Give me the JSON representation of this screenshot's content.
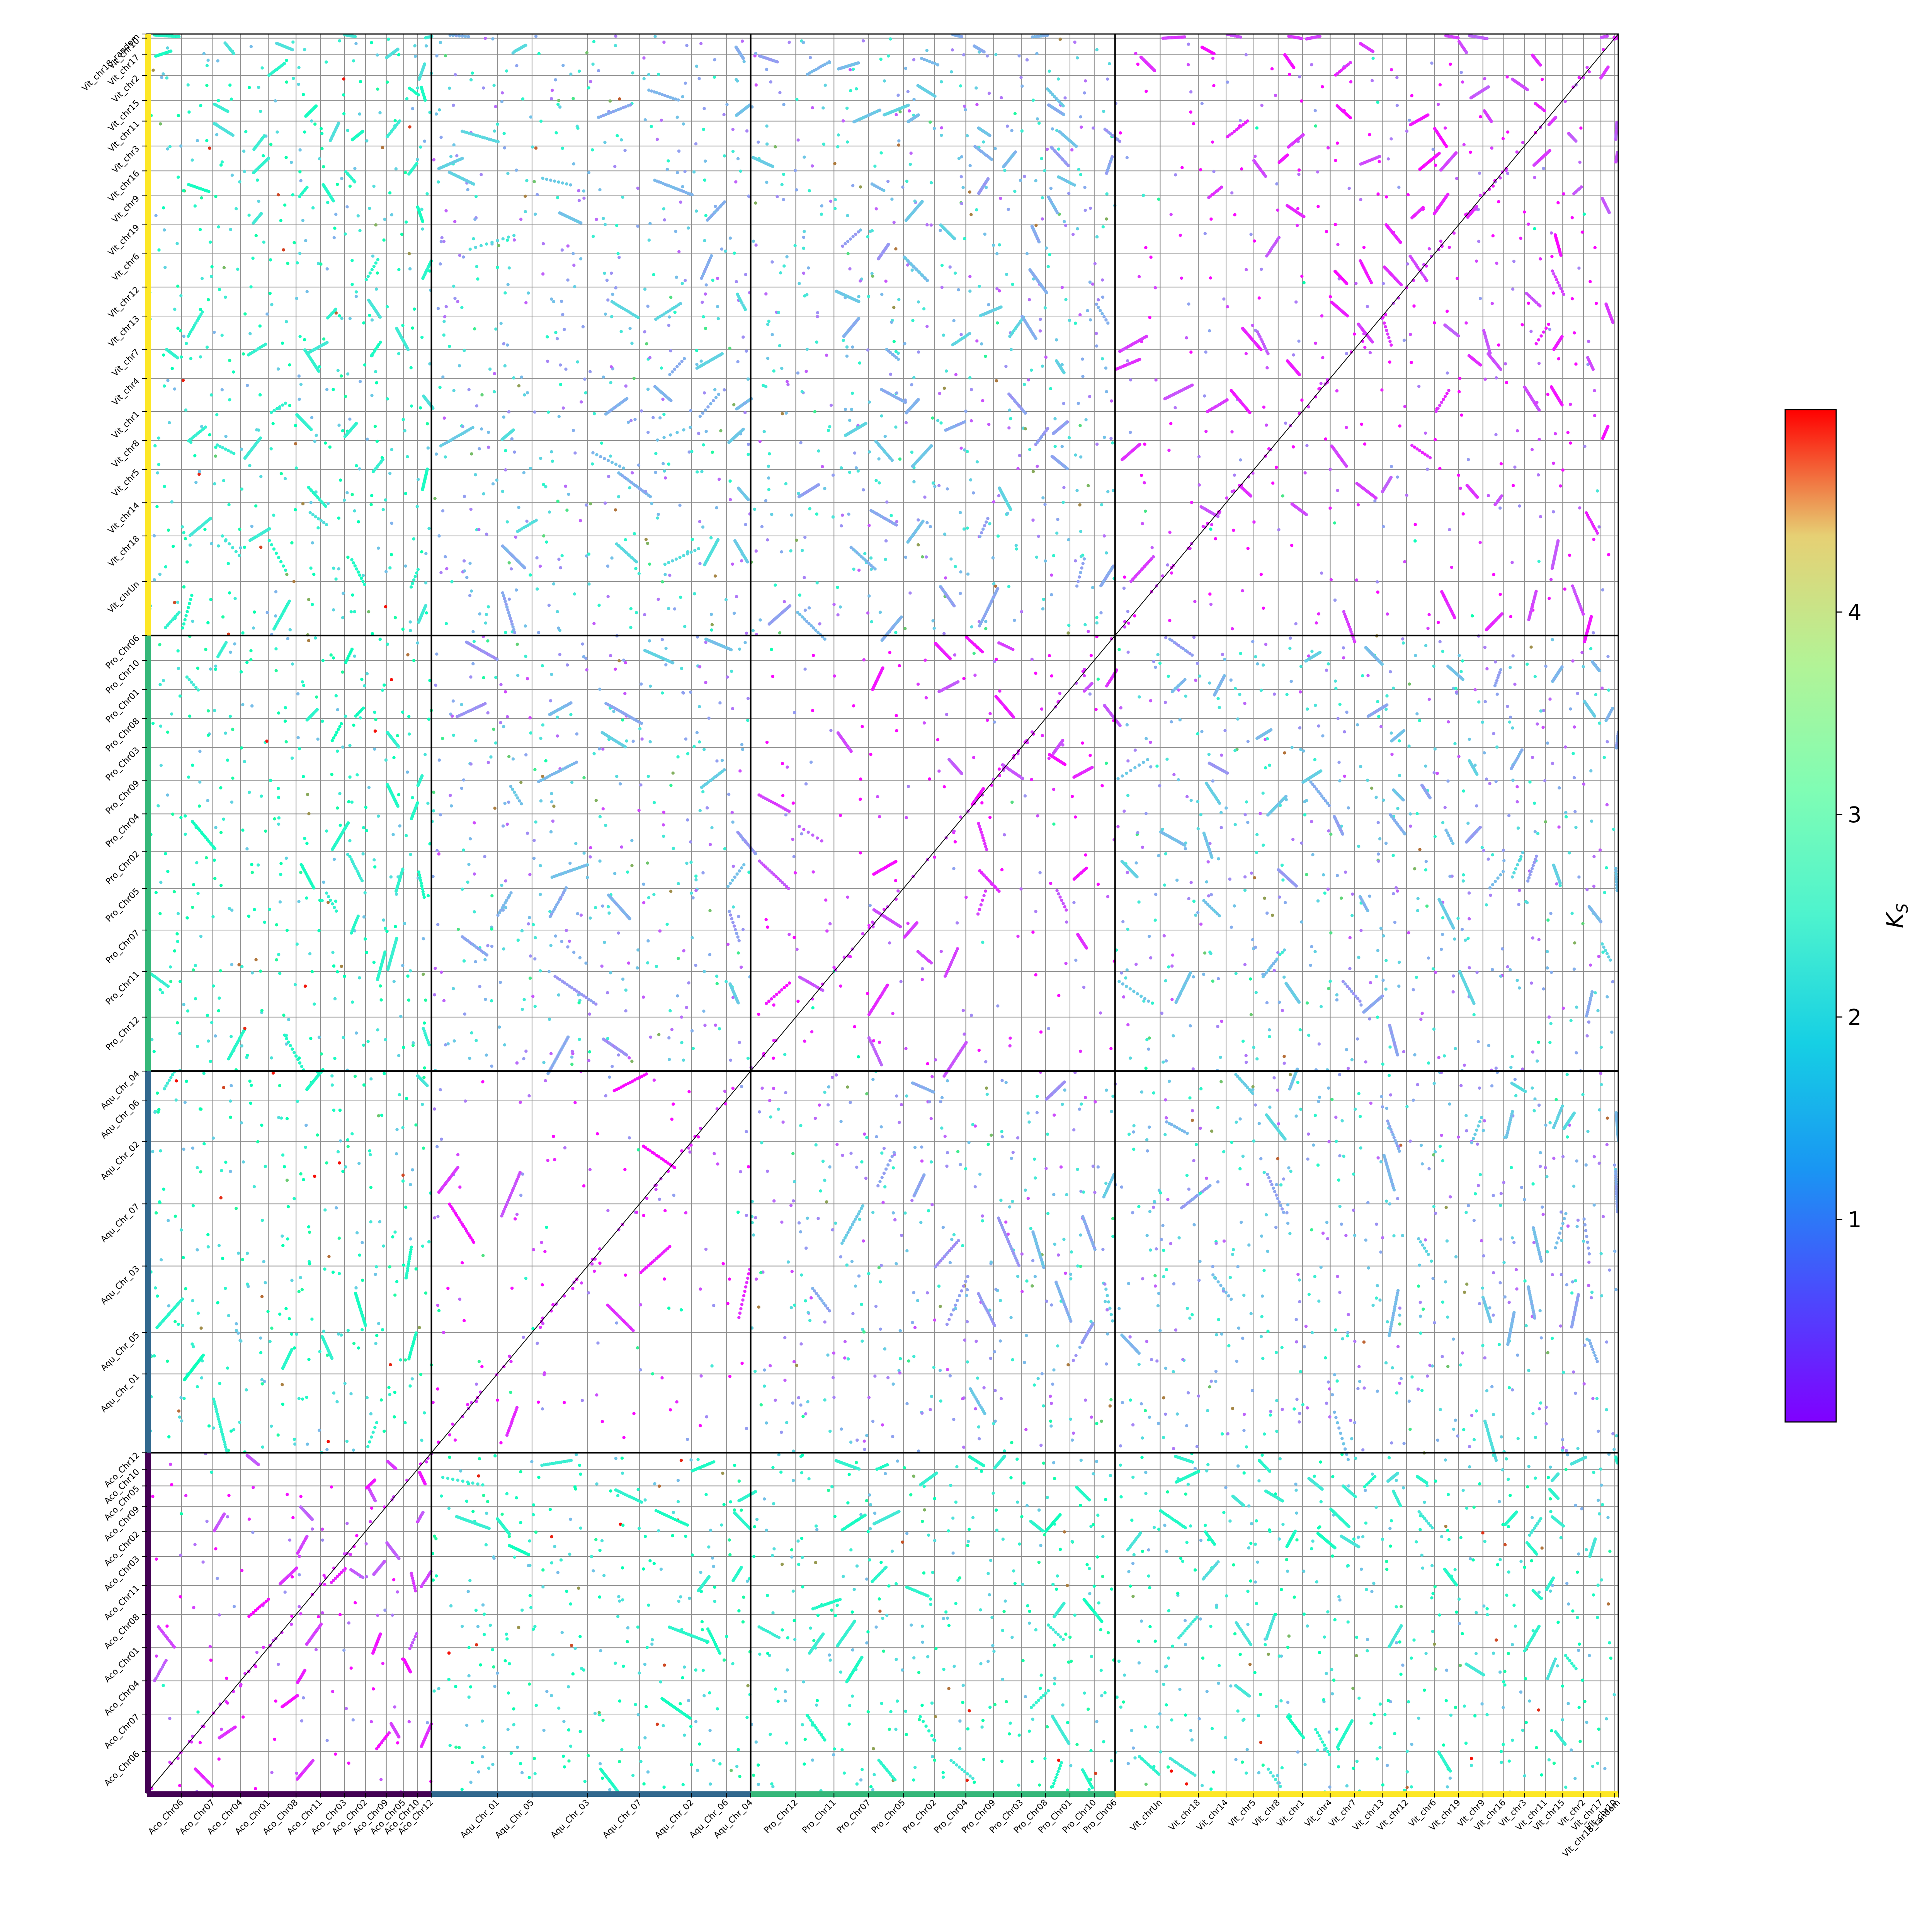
{
  "chart_data": {
    "type": "scatter",
    "title": "",
    "x_axis": {
      "groups": [
        {
          "name": "Aco",
          "color": "#440154",
          "chromosomes": [
            "Aco_Chr06",
            "Aco_Chr07",
            "Aco_Chr04",
            "Aco_Chr01",
            "Aco_Chr08",
            "Aco_Chr11",
            "Aco_Chr03",
            "Aco_Chr02",
            "Aco_Chr09",
            "Aco_Chr05",
            "Aco_Chr10",
            "Aco_Chr12"
          ],
          "sizes": [
            10,
            9,
            8,
            8,
            8,
            7,
            7,
            6,
            6,
            5,
            4,
            4
          ]
        },
        {
          "name": "Aqu",
          "color": "#31688e",
          "chromosomes": [
            "Aqu_Chr_01",
            "Aqu_Chr_05",
            "Aqu_Chr_03",
            "Aqu_Chr_07",
            "Aqu_Chr_02",
            "Aqu_Chr_06",
            "Aqu_Chr_04"
          ],
          "sizes": [
            19,
            10,
            16,
            15,
            15,
            10,
            7
          ]
        },
        {
          "name": "Pro",
          "color": "#35b779",
          "chromosomes": [
            "Pro_Chr12",
            "Pro_Chr11",
            "Pro_Chr07",
            "Pro_Chr05",
            "Pro_Chr02",
            "Pro_Chr04",
            "Pro_Chr09",
            "Pro_Chr03",
            "Pro_Chr08",
            "Pro_Chr01",
            "Pro_Chr10",
            "Pro_Chr06"
          ],
          "sizes": [
            13,
            11,
            10,
            10,
            9,
            9,
            8,
            8,
            7,
            7,
            7,
            6
          ]
        },
        {
          "name": "Vit",
          "color": "#fde725",
          "chromosomes": [
            "Vit_chrUn",
            "Vit_chr18",
            "Vit_chr14",
            "Vit_chr5",
            "Vit_chr8",
            "Vit_chr1",
            "Vit_chr4",
            "Vit_chr7",
            "Vit_chr13",
            "Vit_chr12",
            "Vit_chr6",
            "Vit_chr19",
            "Vit_chr9",
            "Vit_chr16",
            "Vit_chr3",
            "Vit_chr11",
            "Vit_chr15",
            "Vit_chr2",
            "Vit_chr17",
            "Vit_chr10",
            "Vit_chr18_random"
          ],
          "sizes": [
            13,
            11,
            8,
            8,
            7,
            7,
            8,
            7,
            8,
            7,
            8,
            7,
            7,
            6,
            6,
            6,
            5,
            6,
            5,
            4,
            1
          ]
        }
      ]
    },
    "y_axis": {
      "bottom_to_top": true,
      "groups": [
        {
          "name": "Aco",
          "color": "#440154",
          "chromosomes": [
            "Aco_Chr06",
            "Aco_Chr07",
            "Aco_Chr04",
            "Aco_Chr01",
            "Aco_Chr08",
            "Aco_Chr11",
            "Aco_Chr03",
            "Aco_Chr02",
            "Aco_Chr09",
            "Aco_Chr05",
            "Aco_Chr10",
            "Aco_Chr12"
          ],
          "sizes": [
            10,
            9,
            8,
            8,
            8,
            7,
            7,
            6,
            6,
            5,
            4,
            4
          ]
        },
        {
          "name": "Aqu",
          "color": "#31688e",
          "chromosomes": [
            "Aqu_Chr_01",
            "Aqu_Chr_05",
            "Aqu_Chr_03",
            "Aqu_Chr_07",
            "Aqu_Chr_02",
            "Aqu_Chr_06",
            "Aqu_Chr_04"
          ],
          "sizes": [
            19,
            10,
            16,
            15,
            15,
            10,
            7
          ]
        },
        {
          "name": "Pro",
          "color": "#35b779",
          "chromosomes": [
            "Pro_Chr12",
            "Pro_Chr11",
            "Pro_Chr07",
            "Pro_Chr05",
            "Pro_Chr02",
            "Pro_Chr04",
            "Pro_Chr09",
            "Pro_Chr03",
            "Pro_Chr08",
            "Pro_Chr01",
            "Pro_Chr10",
            "Pro_Chr06"
          ],
          "sizes": [
            13,
            11,
            10,
            10,
            9,
            9,
            8,
            8,
            7,
            7,
            7,
            6
          ]
        },
        {
          "name": "Vit",
          "color": "#fde725",
          "chromosomes": [
            "Vit_chrUn",
            "Vit_chr18",
            "Vit_chr14",
            "Vit_chr5",
            "Vit_chr8",
            "Vit_chr1",
            "Vit_chr4",
            "Vit_chr7",
            "Vit_chr13",
            "Vit_chr12",
            "Vit_chr6",
            "Vit_chr19",
            "Vit_chr9",
            "Vit_chr16",
            "Vit_chr3",
            "Vit_chr11",
            "Vit_chr15",
            "Vit_chr2",
            "Vit_chr17",
            "Vit_chr10",
            "Vit_chr18_random"
          ],
          "sizes": [
            13,
            11,
            8,
            8,
            7,
            7,
            8,
            7,
            8,
            7,
            8,
            7,
            7,
            6,
            6,
            6,
            5,
            6,
            5,
            4,
            1
          ]
        }
      ]
    },
    "points_note_source": "synteny anchor pairs colored by Ks",
    "colorbar": {
      "label": "K",
      "label_subscript": "S",
      "colormap": "rainbow",
      "vmin": 0,
      "vmax": 5,
      "ticks": [
        "1",
        "2",
        "3",
        "4"
      ],
      "tick_values": [
        1,
        2,
        3,
        4
      ]
    },
    "grid": true,
    "diagonal_line": true
  }
}
